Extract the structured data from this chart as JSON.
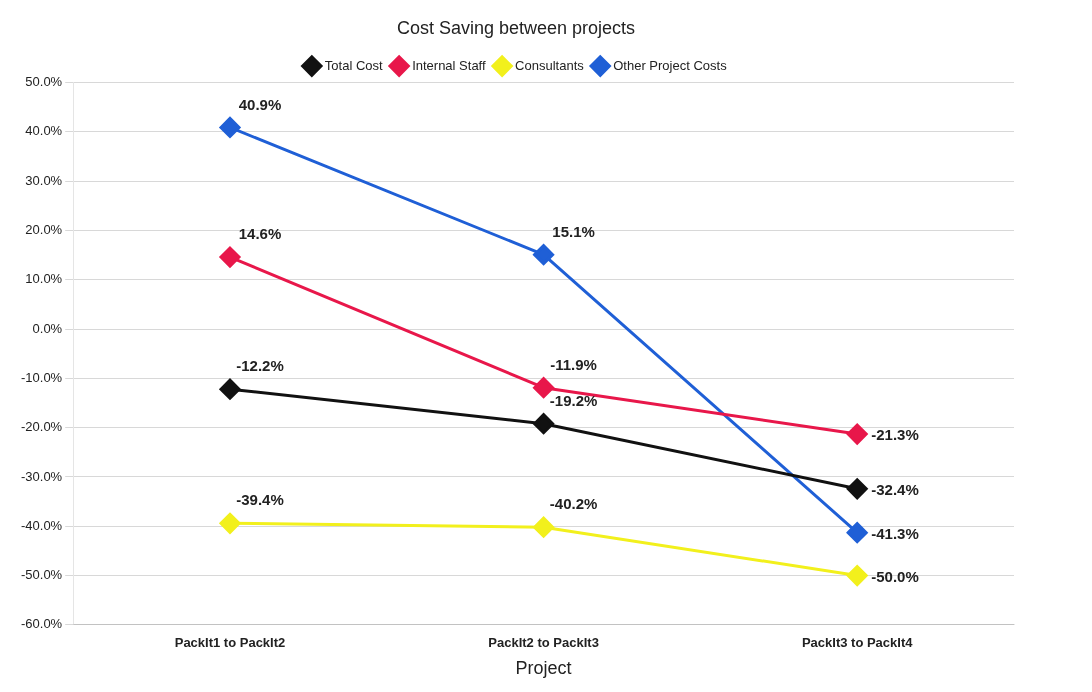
{
  "chart_data": {
    "type": "line",
    "title": "Cost Saving between projects",
    "xlabel": "Project",
    "categories": [
      "PackIt1 to PackIt2",
      "PackIt2 to PackIt3",
      "PackIt3 to PackIt4"
    ],
    "series": [
      {
        "name": "Total Cost",
        "color": "#111111",
        "values": [
          -12.2,
          -19.2,
          -32.4
        ],
        "value_labels": [
          "-12.2%",
          "-19.2%",
          "-32.4%"
        ]
      },
      {
        "name": "Internal Staff",
        "color": "#e8174a",
        "values": [
          14.6,
          -11.9,
          -21.3
        ],
        "value_labels": [
          "14.6%",
          "-11.9%",
          "-21.3%"
        ]
      },
      {
        "name": "Consultants",
        "color": "#f2f01c",
        "values": [
          -39.4,
          -40.2,
          -50.0
        ],
        "value_labels": [
          "-39.4%",
          "-40.2%",
          "-50.0%"
        ]
      },
      {
        "name": "Other Project Costs",
        "color": "#1f5fd6",
        "values": [
          40.9,
          15.1,
          -41.3
        ],
        "value_labels": [
          "40.9%",
          "15.1%",
          "-41.3%"
        ]
      }
    ],
    "ylim": [
      -60,
      50
    ],
    "yticks": [
      {
        "value": -60,
        "label": "-60.0%"
      },
      {
        "value": -50,
        "label": "-50.0%"
      },
      {
        "value": -40,
        "label": "-40.0%"
      },
      {
        "value": -30,
        "label": "-30.0%"
      },
      {
        "value": -20,
        "label": "-20.0%"
      },
      {
        "value": -10,
        "label": "-10.0%"
      },
      {
        "value": 0,
        "label": "0.0%"
      },
      {
        "value": 10,
        "label": "10.0%"
      },
      {
        "value": 20,
        "label": "20.0%"
      },
      {
        "value": 30,
        "label": "30.0%"
      },
      {
        "value": 40,
        "label": "40.0%"
      },
      {
        "value": 50,
        "label": "50.0%"
      }
    ],
    "grid": "y",
    "legend": "top",
    "marker": "diamond",
    "line_style": "solid"
  }
}
